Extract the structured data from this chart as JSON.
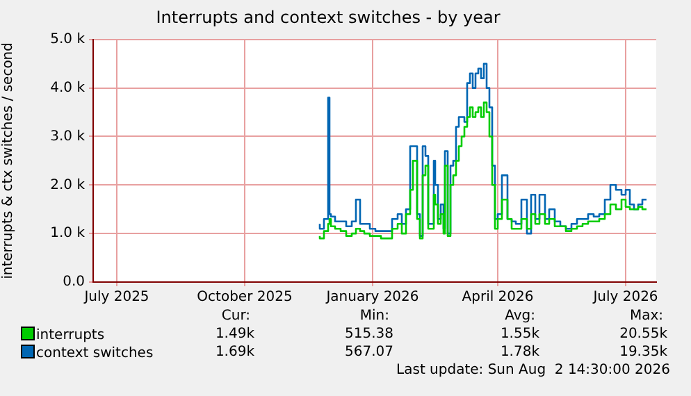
{
  "chart_data": {
    "type": "step",
    "title": "Interrupts and context switches - by year",
    "ylabel": "interrupts & ctx switches / second",
    "x": [
      "2025-12-03",
      "2025-12-06",
      "2025-12-09",
      "2025-12-10",
      "2025-12-11",
      "2025-12-14",
      "2025-12-18",
      "2025-12-22",
      "2025-12-26",
      "2025-12-29",
      "2026-01-01",
      "2026-01-04",
      "2026-01-08",
      "2026-01-12",
      "2026-01-16",
      "2026-01-20",
      "2026-01-24",
      "2026-01-28",
      "2026-01-31",
      "2026-02-03",
      "2026-02-06",
      "2026-02-08",
      "2026-02-11",
      "2026-02-13",
      "2026-02-15",
      "2026-02-17",
      "2026-02-19",
      "2026-02-21",
      "2026-02-23",
      "2026-02-24",
      "2026-02-26",
      "2026-02-28",
      "2026-03-02",
      "2026-03-03",
      "2026-03-05",
      "2026-03-07",
      "2026-03-09",
      "2026-03-11",
      "2026-03-13",
      "2026-03-15",
      "2026-03-17",
      "2026-03-19",
      "2026-03-21",
      "2026-03-23",
      "2026-03-25",
      "2026-03-27",
      "2026-03-29",
      "2026-03-31",
      "2026-04-02",
      "2026-04-04",
      "2026-04-06",
      "2026-04-08",
      "2026-04-10",
      "2026-04-13",
      "2026-04-17",
      "2026-04-20",
      "2026-04-23",
      "2026-04-27",
      "2026-05-01",
      "2026-05-04",
      "2026-05-07",
      "2026-05-10",
      "2026-05-14",
      "2026-05-17",
      "2026-05-21",
      "2026-05-25",
      "2026-05-29",
      "2026-06-02",
      "2026-06-06",
      "2026-06-10",
      "2026-06-14",
      "2026-06-18",
      "2026-06-22",
      "2026-06-26",
      "2026-06-30",
      "2026-07-04",
      "2026-07-08",
      "2026-07-11",
      "2026-07-14",
      "2026-07-17",
      "2026-07-20",
      "2026-07-23",
      "2026-07-26"
    ],
    "series": [
      {
        "name": "interrupts",
        "color": "#00cc00",
        "values": [
          950,
          900,
          1050,
          1200,
          1300,
          1150,
          1100,
          1050,
          950,
          1000,
          1100,
          1050,
          1000,
          950,
          950,
          900,
          900,
          1100,
          1200,
          1000,
          1400,
          1900,
          2500,
          1300,
          900,
          2200,
          2400,
          1100,
          1100,
          1800,
          1600,
          1200,
          1400,
          1000,
          2400,
          950,
          2000,
          2200,
          2500,
          2800,
          3000,
          3200,
          3400,
          3600,
          3400,
          3500,
          3600,
          3400,
          3700,
          3500,
          3000,
          2000,
          1100,
          1300,
          1700,
          1300,
          1100,
          1100,
          1300,
          1100,
          1400,
          1200,
          1400,
          1200,
          1300,
          1150,
          1150,
          1050,
          1100,
          1150,
          1200,
          1250,
          1250,
          1300,
          1400,
          1600,
          1500,
          1700,
          1550,
          1500,
          1500,
          1550,
          1500
        ]
      },
      {
        "name": "context switches",
        "color": "#0066b3",
        "values": [
          1200,
          1100,
          1300,
          3800,
          1400,
          1350,
          1250,
          1250,
          1150,
          1250,
          1700,
          1200,
          1200,
          1100,
          1050,
          1050,
          1050,
          1300,
          1400,
          1200,
          1500,
          2800,
          2800,
          1400,
          950,
          2800,
          2600,
          1200,
          1200,
          2500,
          2000,
          1300,
          1600,
          1100,
          2700,
          1000,
          2400,
          2500,
          3200,
          3400,
          3400,
          3300,
          4100,
          4300,
          4000,
          4300,
          4400,
          4200,
          4500,
          4000,
          3600,
          2400,
          1300,
          1400,
          2200,
          1300,
          1250,
          1200,
          1700,
          1000,
          1800,
          1300,
          1800,
          1300,
          1500,
          1250,
          1150,
          1100,
          1200,
          1300,
          1300,
          1400,
          1350,
          1400,
          1700,
          2000,
          1900,
          1800,
          1900,
          1600,
          1500,
          1600,
          1700
        ]
      }
    ],
    "xlim": [
      "2025-06-23",
      "2026-08-02"
    ],
    "xticks": [
      {
        "value": "2025-07-10",
        "label": "July 2025"
      },
      {
        "value": "2025-10-10",
        "label": "October 2025"
      },
      {
        "value": "2026-01-10",
        "label": "January 2026"
      },
      {
        "value": "2026-04-10",
        "label": "April 2026"
      },
      {
        "value": "2026-07-11",
        "label": "July 2026"
      }
    ],
    "ylim": [
      0,
      5000
    ],
    "yticks": [
      {
        "value": 0,
        "label": "0.0"
      },
      {
        "value": 1000,
        "label": "1.0 k"
      },
      {
        "value": 2000,
        "label": "2.0 k"
      },
      {
        "value": 3000,
        "label": "3.0 k"
      },
      {
        "value": 4000,
        "label": "4.0 k"
      },
      {
        "value": 5000,
        "label": "5.0 k"
      }
    ],
    "grid": true,
    "legend": "bottom",
    "marker": "none",
    "line_style": "solid",
    "annotations": [
      "Cur:",
      "Min:",
      "Avg:",
      "Max:",
      "1.49k",
      "515.38",
      "1.55k",
      "20.55k",
      "1.69k",
      "567.07",
      "1.78k",
      "19.35k",
      "Last update: Sun Aug  2 14:30:00 2026"
    ]
  }
}
